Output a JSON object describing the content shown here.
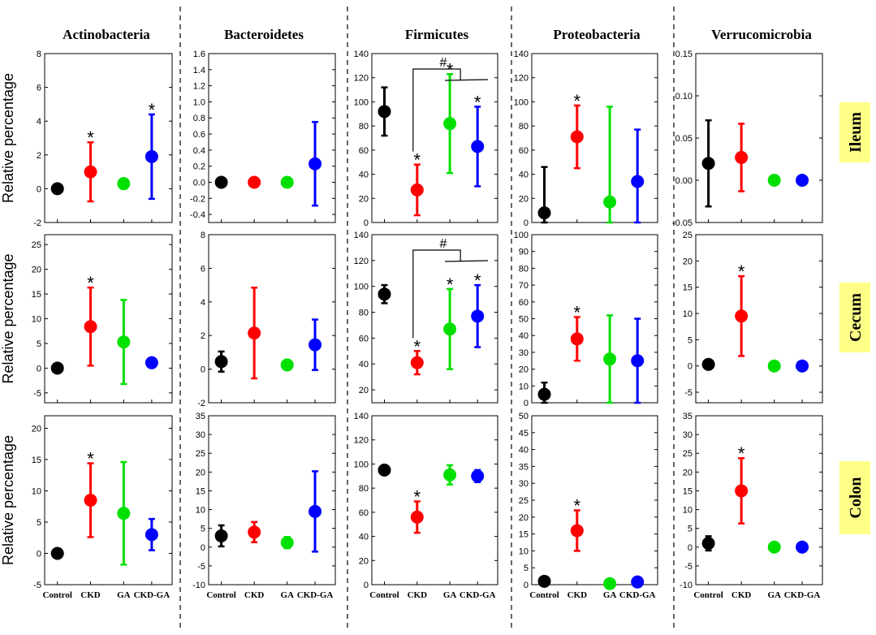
{
  "chart_data": {
    "type": "scatter",
    "plot_style": "mean with error bars",
    "columns": [
      "Actinobacteria",
      "Bacteroidetes",
      "Firmicutes",
      "Proteobacteria",
      "Verrucomicrobia"
    ],
    "rows": [
      "Ileum",
      "Cecum",
      "Colon"
    ],
    "categories": [
      "Control",
      "CKD",
      "GA",
      "CKD-GA"
    ],
    "ylabel": "Relative percentage",
    "series_colors": {
      "Control": "#000000",
      "CKD": "#ff0000",
      "GA": "#00e000",
      "CKD-GA": "#0000ff"
    },
    "region_label_bg": "#ffff88",
    "panels": [
      {
        "col": "Actinobacteria",
        "row": "Ileum",
        "ylim": [
          -2,
          8
        ],
        "ticks": [
          "-2",
          "0",
          "2",
          "4",
          "6",
          "8"
        ],
        "means": [
          0,
          1.0,
          0.3,
          1.9
        ],
        "errors": [
          0.1,
          1.75,
          0.3,
          2.5
        ],
        "stars": [
          "",
          "*",
          "",
          "*"
        ]
      },
      {
        "col": "Bacteroidetes",
        "row": "Ileum",
        "ylim": [
          -0.5,
          1.6
        ],
        "ticks": [
          "-0.4",
          "-0.2",
          "0.0",
          "0.2",
          "0.4",
          "0.6",
          "0.8",
          "1.0",
          "1.2",
          "1.4",
          "1.6"
        ],
        "means": [
          0,
          0,
          0,
          0.23
        ],
        "errors": [
          0.01,
          0.01,
          0.01,
          0.52
        ],
        "stars": [
          "",
          "",
          "",
          ""
        ]
      },
      {
        "col": "Firmicutes",
        "row": "Ileum",
        "ylim": [
          0,
          140
        ],
        "ticks": [
          "0",
          "20",
          "40",
          "60",
          "80",
          "100",
          "120",
          "140"
        ],
        "means": [
          92,
          27,
          82,
          63
        ],
        "errors": [
          20,
          21,
          41,
          33
        ],
        "stars": [
          "",
          "*",
          "*",
          "*"
        ],
        "bracket": {
          "symbol": "#",
          "from": "CKD",
          "to": [
            "GA",
            "CKD-GA"
          ]
        }
      },
      {
        "col": "Proteobacteria",
        "row": "Ileum",
        "ylim": [
          0,
          140
        ],
        "ticks": [
          "0",
          "20",
          "40",
          "60",
          "80",
          "100",
          "120",
          "140"
        ],
        "means": [
          8,
          71,
          17,
          34
        ],
        "errors": [
          38,
          26,
          79,
          43
        ],
        "stars": [
          "",
          "*",
          "",
          ""
        ]
      },
      {
        "col": "Verrucomicrobia",
        "row": "Ileum",
        "ylim": [
          -0.05,
          0.15
        ],
        "ticks": [
          "-0.05",
          "0.00",
          "0.05",
          "0.10",
          "0.15"
        ],
        "means": [
          0.02,
          0.027,
          0,
          0
        ],
        "errors": [
          0.051,
          0.04,
          0.0005,
          0.0005
        ],
        "stars": [
          "",
          "",
          "",
          ""
        ]
      },
      {
        "col": "Actinobacteria",
        "row": "Cecum",
        "ylim": [
          -7,
          27
        ],
        "ticks": [
          "-5",
          "0",
          "5",
          "10",
          "15",
          "20",
          "25"
        ],
        "means": [
          0,
          8.4,
          5.3,
          1.1
        ],
        "errors": [
          0.3,
          7.9,
          8.5,
          0.5
        ],
        "stars": [
          "",
          "*",
          "",
          ""
        ]
      },
      {
        "col": "Bacteroidetes",
        "row": "Cecum",
        "ylim": [
          -2,
          8
        ],
        "ticks": [
          "-2",
          "0",
          "2",
          "4",
          "6",
          "8"
        ],
        "means": [
          0.45,
          2.15,
          0.25,
          1.45
        ],
        "errors": [
          0.6,
          2.7,
          0.15,
          1.5
        ],
        "stars": [
          "",
          "",
          "",
          ""
        ]
      },
      {
        "col": "Firmicutes",
        "row": "Cecum",
        "ylim": [
          10,
          140
        ],
        "ticks": [
          "20",
          "40",
          "60",
          "80",
          "100",
          "120",
          "140"
        ],
        "means": [
          94,
          41,
          67,
          77
        ],
        "errors": [
          7,
          9,
          31,
          24
        ],
        "stars": [
          "",
          "*",
          "*",
          "*"
        ],
        "bracket": {
          "symbol": "#",
          "from": "CKD",
          "to": [
            "GA",
            "CKD-GA"
          ]
        }
      },
      {
        "col": "Proteobacteria",
        "row": "Cecum",
        "ylim": [
          0,
          100
        ],
        "ticks": [
          "0",
          "10",
          "20",
          "30",
          "40",
          "50",
          "60",
          "70",
          "80",
          "90",
          "100"
        ],
        "means": [
          5,
          38,
          26,
          25
        ],
        "errors": [
          7,
          13,
          26,
          25
        ],
        "stars": [
          "",
          "*",
          "",
          ""
        ]
      },
      {
        "col": "Verrucomicrobia",
        "row": "Cecum",
        "ylim": [
          -7,
          25
        ],
        "ticks": [
          "-5",
          "0",
          "5",
          "10",
          "15",
          "20",
          "25"
        ],
        "means": [
          0.3,
          9.5,
          0,
          0
        ],
        "errors": [
          0.3,
          7.6,
          0.01,
          0.01
        ],
        "stars": [
          "",
          "*",
          "",
          ""
        ]
      },
      {
        "col": "Actinobacteria",
        "row": "Colon",
        "ylim": [
          -5,
          22
        ],
        "ticks": [
          "-5",
          "0",
          "5",
          "10",
          "15",
          "20"
        ],
        "means": [
          0,
          8.5,
          6.4,
          3.0
        ],
        "errors": [
          0.2,
          5.9,
          8.2,
          2.5
        ],
        "stars": [
          "",
          "*",
          "",
          ""
        ]
      },
      {
        "col": "Bacteroidetes",
        "row": "Colon",
        "ylim": [
          -10,
          35
        ],
        "ticks": [
          "-10",
          "-5",
          "0",
          "5",
          "10",
          "15",
          "20",
          "25",
          "30",
          "35"
        ],
        "means": [
          3,
          4,
          1.2,
          9.5
        ],
        "errors": [
          2.8,
          2.7,
          1.5,
          10.7
        ],
        "stars": [
          "",
          "",
          "",
          ""
        ]
      },
      {
        "col": "Firmicutes",
        "row": "Colon",
        "ylim": [
          0,
          140
        ],
        "ticks": [
          "0",
          "20",
          "40",
          "60",
          "80",
          "100",
          "120",
          "140"
        ],
        "means": [
          95,
          56,
          91,
          90
        ],
        "errors": [
          2,
          13,
          8,
          5
        ],
        "stars": [
          "",
          "*",
          "",
          ""
        ]
      },
      {
        "col": "Proteobacteria",
        "row": "Colon",
        "ylim": [
          0,
          50
        ],
        "ticks": [
          "0",
          "5",
          "10",
          "15",
          "20",
          "25",
          "30",
          "35",
          "40",
          "45",
          "50"
        ],
        "means": [
          1,
          16,
          0.3,
          0.8
        ],
        "errors": [
          0.3,
          6,
          0.1,
          0.2
        ],
        "stars": [
          "",
          "*",
          "",
          ""
        ]
      },
      {
        "col": "Verrucomicrobia",
        "row": "Colon",
        "ylim": [
          -10,
          35
        ],
        "ticks": [
          "-10",
          "-5",
          "0",
          "5",
          "10",
          "15",
          "20",
          "25",
          "30",
          "35"
        ],
        "means": [
          1,
          15,
          0,
          0
        ],
        "errors": [
          1.9,
          8.7,
          0.01,
          0.01
        ],
        "stars": [
          "",
          "*",
          "",
          ""
        ]
      }
    ]
  }
}
